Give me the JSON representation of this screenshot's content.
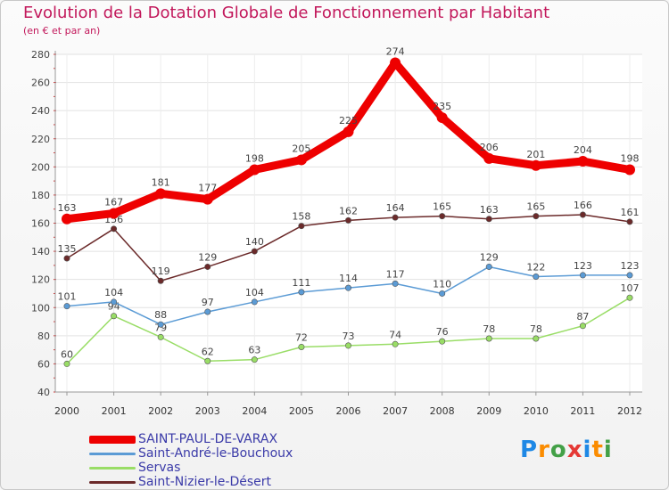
{
  "chart_data": {
    "type": "line",
    "title": "Evolution de la Dotation Globale de Fonctionnement par Habitant",
    "subtitle": "(en € et par an)",
    "categories": [
      "2000",
      "2001",
      "2002",
      "2003",
      "2004",
      "2005",
      "2006",
      "2007",
      "2008",
      "2009",
      "2010",
      "2011",
      "2012"
    ],
    "ylim": [
      40,
      280
    ],
    "yticks": [
      40,
      60,
      80,
      100,
      120,
      140,
      160,
      180,
      200,
      220,
      240,
      260,
      280
    ],
    "grid": true,
    "series": [
      {
        "name": "SAINT-PAUL-DE-VARAX",
        "color": "#ee0000",
        "values": [
          163,
          167,
          181,
          177,
          198,
          205,
          225,
          274,
          235,
          206,
          201,
          204,
          198
        ]
      },
      {
        "name": "Saint-André-le-Bouchoux",
        "color": "#5b9bd5",
        "values": [
          101,
          104,
          88,
          97,
          104,
          111,
          114,
          117,
          110,
          129,
          122,
          123,
          123
        ]
      },
      {
        "name": "Servas",
        "color": "#99dd66",
        "values": [
          60,
          94,
          79,
          62,
          63,
          72,
          73,
          74,
          76,
          78,
          78,
          87,
          107
        ]
      },
      {
        "name": "Saint-Nizier-le-Désert",
        "color": "#6b2a2a",
        "values": [
          135,
          156,
          119,
          129,
          140,
          158,
          162,
          164,
          165,
          163,
          165,
          166,
          161
        ]
      }
    ]
  },
  "logo": {
    "text": "Proxiti",
    "letters": [
      "P",
      "r",
      "o",
      "x",
      "i",
      "t",
      "i"
    ],
    "colors": [
      "#1e88e5",
      "#fb8c00",
      "#43a047",
      "#e53935",
      "#1e88e5",
      "#fb8c00",
      "#43a047"
    ]
  }
}
